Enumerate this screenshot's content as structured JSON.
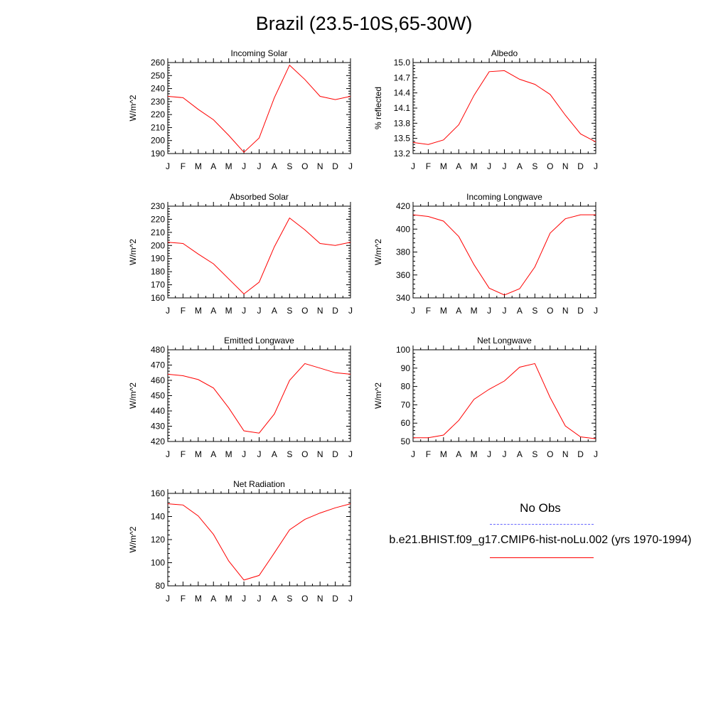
{
  "title": "Brazil (23.5-10S,65-30W)",
  "legend": {
    "obs_label": "No Obs",
    "model_label": "b.e21.BHIST.f09_g17.CMIP6-hist-noLu.002 (yrs 1970-1994)",
    "obs_color": "#6666ff",
    "model_color": "#ff0000"
  },
  "chart_data": [
    {
      "type": "line",
      "title": "Incoming Solar",
      "ylabel": "W/m^2",
      "categories": [
        "J",
        "F",
        "M",
        "A",
        "M",
        "J",
        "J",
        "A",
        "S",
        "O",
        "N",
        "D",
        "J"
      ],
      "ylim": [
        190,
        260
      ],
      "yticks": [
        "190",
        "200",
        "210",
        "220",
        "230",
        "240",
        "250",
        "260"
      ],
      "series": [
        {
          "color": "#ff0000",
          "values": [
            234,
            233,
            224,
            216,
            204,
            191,
            202,
            233,
            258,
            247,
            234,
            231.5,
            234
          ]
        }
      ]
    },
    {
      "type": "line",
      "title": "Albedo",
      "ylabel": "% reflected",
      "categories": [
        "J",
        "F",
        "M",
        "A",
        "M",
        "J",
        "J",
        "A",
        "S",
        "O",
        "N",
        "D",
        "J"
      ],
      "ylim": [
        13.2,
        15.0
      ],
      "yticks": [
        "13.2",
        "13.5",
        "13.8",
        "14.1",
        "14.4",
        "14.7",
        "15.0"
      ],
      "series": [
        {
          "color": "#ff0000",
          "values": [
            13.42,
            13.38,
            13.47,
            13.77,
            14.35,
            14.82,
            14.84,
            14.67,
            14.57,
            14.37,
            13.96,
            13.59,
            13.43
          ]
        }
      ]
    },
    {
      "type": "line",
      "title": "Absorbed Solar",
      "ylabel": "W/m^2",
      "categories": [
        "J",
        "F",
        "M",
        "A",
        "M",
        "J",
        "J",
        "A",
        "S",
        "O",
        "N",
        "D",
        "J"
      ],
      "ylim": [
        160,
        230
      ],
      "yticks": [
        "160",
        "170",
        "180",
        "190",
        "200",
        "210",
        "220",
        "230"
      ],
      "series": [
        {
          "color": "#ff0000",
          "values": [
            202.5,
            201.5,
            193.5,
            186,
            174.5,
            163,
            172,
            199,
            221,
            212,
            201.5,
            200,
            202.5
          ]
        }
      ]
    },
    {
      "type": "line",
      "title": "Incoming Longwave",
      "ylabel": "W/m^2",
      "categories": [
        "J",
        "F",
        "M",
        "A",
        "M",
        "J",
        "J",
        "A",
        "S",
        "O",
        "N",
        "D",
        "J"
      ],
      "ylim": [
        340,
        420
      ],
      "yticks": [
        "340",
        "360",
        "380",
        "400",
        "420"
      ],
      "series": [
        {
          "color": "#ff0000",
          "values": [
            412.5,
            411,
            407,
            393.5,
            369,
            348.5,
            342.5,
            348,
            367,
            396.5,
            409,
            412.5,
            412.5
          ]
        }
      ]
    },
    {
      "type": "line",
      "title": "Emitted Longwave",
      "ylabel": "W/m^2",
      "categories": [
        "J",
        "F",
        "M",
        "A",
        "M",
        "J",
        "J",
        "A",
        "S",
        "O",
        "N",
        "D",
        "J"
      ],
      "ylim": [
        420,
        480
      ],
      "yticks": [
        "420",
        "430",
        "440",
        "450",
        "460",
        "470",
        "480"
      ],
      "series": [
        {
          "color": "#ff0000",
          "values": [
            464,
            463,
            460.5,
            455,
            442,
            427,
            425.5,
            438,
            460,
            471,
            468,
            465,
            464
          ]
        }
      ]
    },
    {
      "type": "line",
      "title": "Net Longwave",
      "ylabel": "W/m^2",
      "categories": [
        "J",
        "F",
        "M",
        "A",
        "M",
        "J",
        "J",
        "A",
        "S",
        "O",
        "N",
        "D",
        "J"
      ],
      "ylim": [
        50,
        100
      ],
      "yticks": [
        "50",
        "60",
        "70",
        "80",
        "90",
        "100"
      ],
      "series": [
        {
          "color": "#ff0000",
          "values": [
            52,
            52,
            53.5,
            61.5,
            73,
            78.5,
            83,
            90.5,
            92.5,
            74,
            58.5,
            52.5,
            51.5
          ]
        }
      ]
    },
    {
      "type": "line",
      "title": "Net Radiation",
      "ylabel": "W/m^2",
      "categories": [
        "J",
        "F",
        "M",
        "A",
        "M",
        "J",
        "J",
        "A",
        "S",
        "O",
        "N",
        "D",
        "J"
      ],
      "ylim": [
        80,
        160
      ],
      "yticks": [
        "80",
        "100",
        "120",
        "140",
        "160"
      ],
      "series": [
        {
          "color": "#ff0000",
          "values": [
            151,
            150,
            140.5,
            124.5,
            101.5,
            85,
            89,
            108.5,
            128.5,
            137.5,
            143,
            147.5,
            151
          ]
        }
      ]
    }
  ]
}
